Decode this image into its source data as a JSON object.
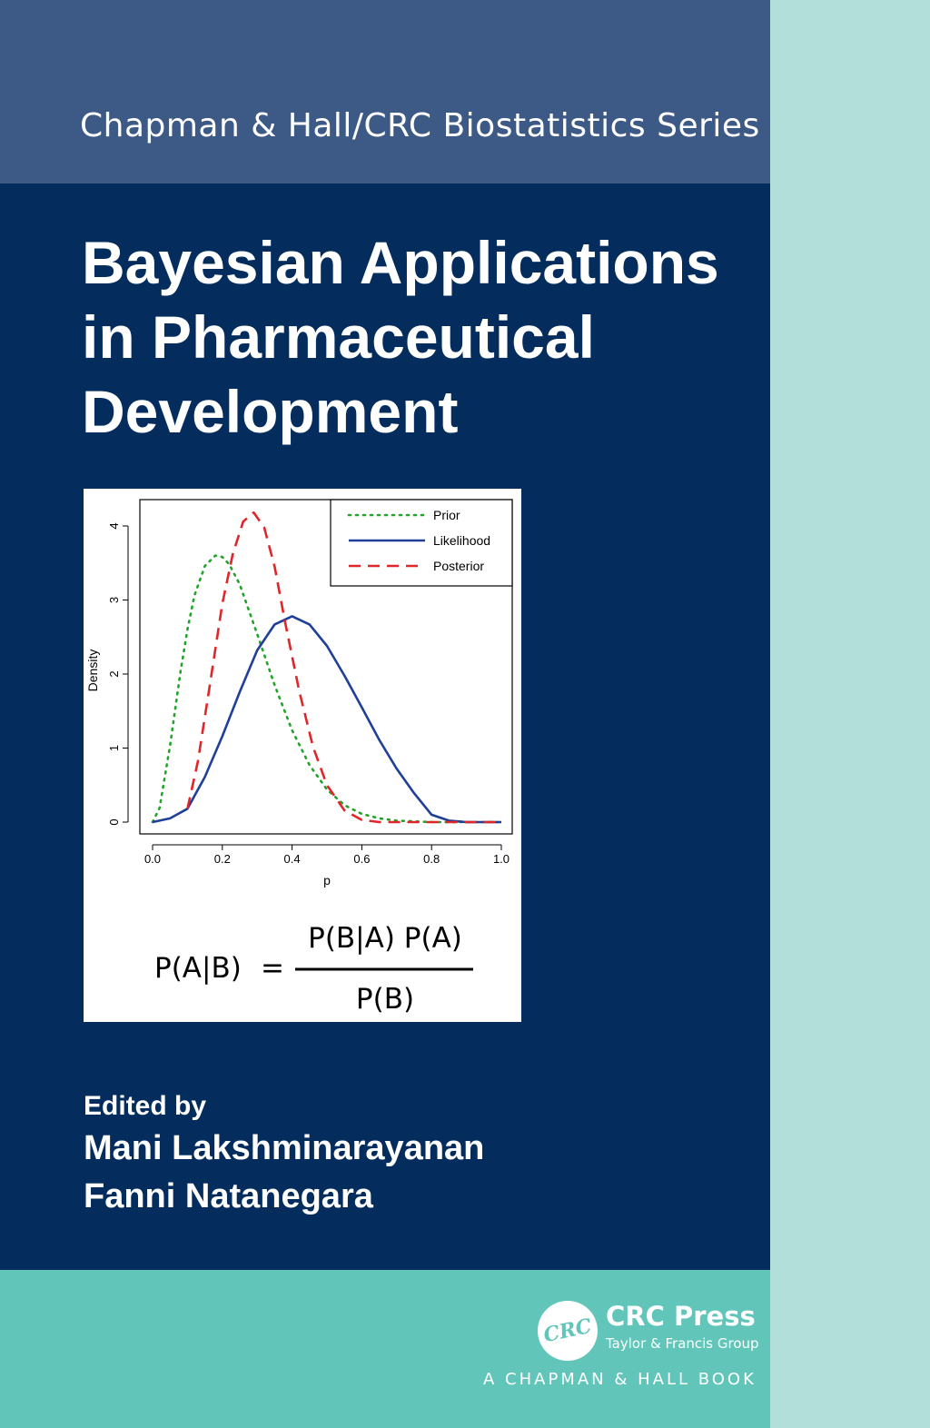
{
  "series": "Chapman & Hall/CRC Biostatistics Series",
  "title_lines": [
    "Bayesian Applications",
    "in Pharmaceutical",
    "Development"
  ],
  "edited_by": "Edited by",
  "editors": [
    "Mani Lakshminarayanan",
    "Fanni Natanegara"
  ],
  "publisher": {
    "logo_text": "CRC",
    "name": "CRC Press",
    "group": "Taylor & Francis Group",
    "imprint": "A CHAPMAN & HALL BOOK"
  },
  "colors": {
    "cover_navy": "#042d5e",
    "series_band": "#3d5a86",
    "publisher_band": "#61c6b9",
    "spine": "#b3dfda"
  },
  "formula": {
    "lhs": "P(A|B)",
    "equals": "=",
    "numerator": "P(B|A) P(A)",
    "denominator": "P(B)"
  },
  "chart_data": {
    "type": "line",
    "xlabel": "p",
    "ylabel": "Density",
    "xlim": [
      0,
      1
    ],
    "ylim": [
      0,
      4.4
    ],
    "x_ticks": [
      "0.0",
      "0.2",
      "0.4",
      "0.6",
      "0.8",
      "1.0"
    ],
    "y_ticks": [
      "0",
      "1",
      "2",
      "3",
      "4"
    ],
    "legend_position": "top-right",
    "grid": false,
    "series": [
      {
        "name": "Prior",
        "style": "dotted",
        "color": "#22a32a",
        "x": [
          0,
          0.02,
          0.05,
          0.08,
          0.1,
          0.12,
          0.15,
          0.18,
          0.2,
          0.22,
          0.25,
          0.3,
          0.35,
          0.4,
          0.45,
          0.5,
          0.55,
          0.6,
          0.65,
          0.7,
          0.8,
          0.9,
          1.0
        ],
        "y": [
          0,
          0.19,
          1.03,
          2.03,
          2.6,
          3.06,
          3.46,
          3.6,
          3.58,
          3.48,
          3.21,
          2.54,
          1.85,
          1.24,
          0.77,
          0.44,
          0.23,
          0.11,
          0.05,
          0.02,
          0,
          0,
          0
        ]
      },
      {
        "name": "Likelihood",
        "style": "solid",
        "color": "#1f3f99",
        "x": [
          0,
          0.05,
          0.1,
          0.15,
          0.2,
          0.25,
          0.3,
          0.35,
          0.4,
          0.45,
          0.5,
          0.55,
          0.6,
          0.65,
          0.7,
          0.75,
          0.8,
          0.85,
          0.9,
          0.95,
          1.0
        ],
        "y": [
          0,
          0.05,
          0.18,
          0.61,
          1.16,
          1.76,
          2.32,
          2.67,
          2.78,
          2.67,
          2.38,
          1.98,
          1.55,
          1.11,
          0.72,
          0.39,
          0.1,
          0.02,
          0,
          0,
          0
        ]
      },
      {
        "name": "Posterior",
        "style": "dashed",
        "color": "#e0262b",
        "x": [
          0.1,
          0.13,
          0.16,
          0.2,
          0.23,
          0.26,
          0.29,
          0.32,
          0.35,
          0.38,
          0.42,
          0.46,
          0.5,
          0.55,
          0.6,
          0.65,
          0.7,
          0.8,
          0.9,
          1.0
        ],
        "y": [
          0.18,
          0.82,
          1.72,
          2.95,
          3.62,
          4.06,
          4.18,
          3.98,
          3.45,
          2.7,
          1.78,
          1.02,
          0.5,
          0.16,
          0.03,
          0,
          0,
          0,
          0,
          0
        ]
      }
    ]
  }
}
